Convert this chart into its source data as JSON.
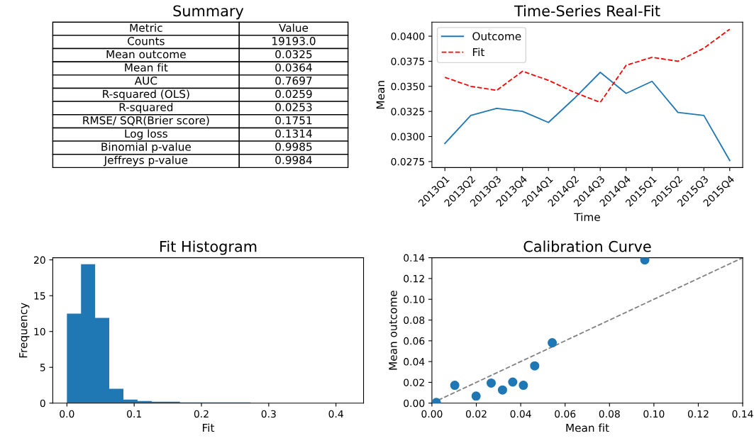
{
  "chart_data": [
    {
      "type": "other",
      "title": "Summary",
      "annotations": [
        "Metric",
        "Value"
      ],
      "categories": [
        "Counts",
        "Mean outcome",
        "Mean fit",
        "AUC",
        "R-squared (OLS)",
        "R-squared",
        "RMSE/ SQR(Brier score)",
        "Log loss",
        "Binomial p-value",
        "Jeffreys p-value"
      ],
      "values": [
        19193,
        0.0325,
        0.0364,
        0.7697,
        0.0259,
        0.0253,
        0.1751,
        0.1314,
        0.9985,
        0.9984
      ],
      "value_labels": [
        "19193.0",
        "0.0325",
        "0.0364",
        "0.7697",
        "0.0259",
        "0.0253",
        "0.1751",
        "0.1314",
        "0.9985",
        "0.9984"
      ]
    },
    {
      "type": "line",
      "title": "Time-Series Real-Fit",
      "xlabel": "Time",
      "ylabel": "Mean",
      "categories": [
        "2013Q1",
        "2013Q2",
        "2013Q3",
        "2013Q4",
        "2014Q1",
        "2014Q2",
        "2014Q3",
        "2014Q4",
        "2015Q1",
        "2015Q2",
        "2015Q3",
        "2015Q4"
      ],
      "series": [
        {
          "name": "Outcome",
          "color": "#1f77b4",
          "line_style": "solid",
          "values": [
            0.0293,
            0.0321,
            0.0328,
            0.0325,
            0.0314,
            0.0338,
            0.0364,
            0.0343,
            0.0355,
            0.0324,
            0.0321,
            0.0276
          ]
        },
        {
          "name": "Fit",
          "color": "#ff0000",
          "line_style": "dashed",
          "values": [
            0.0359,
            0.035,
            0.0346,
            0.0365,
            0.0356,
            0.0344,
            0.0334,
            0.0371,
            0.0379,
            0.0375,
            0.0388,
            0.0407
          ]
        }
      ],
      "ylim": [
        0.0269,
        0.0414
      ],
      "yticks": [
        {
          "value": 0.0275,
          "label": "0.0275"
        },
        {
          "value": 0.03,
          "label": "0.0300"
        },
        {
          "value": 0.0325,
          "label": "0.0325"
        },
        {
          "value": 0.035,
          "label": "0.0350"
        },
        {
          "value": 0.0375,
          "label": "0.0375"
        },
        {
          "value": 0.04,
          "label": "0.0400"
        }
      ],
      "legend": "top left",
      "grid": false
    },
    {
      "type": "histogram",
      "title": "Fit Histogram",
      "xlabel": "Fit",
      "ylabel": "Frequency",
      "bins": [
        0.0,
        0.021,
        0.042,
        0.063,
        0.084,
        0.105,
        0.126,
        0.147,
        0.168,
        0.189,
        0.21,
        0.231,
        0.252,
        0.273,
        0.294,
        0.315,
        0.336,
        0.357,
        0.378,
        0.399,
        0.42
      ],
      "values": [
        12.5,
        19.4,
        11.9,
        2.0,
        0.5,
        0.3,
        0.2,
        0.2,
        0.1,
        0.1,
        0.1,
        0.1,
        0.1,
        0,
        0,
        0,
        0,
        0,
        0,
        0
      ],
      "color": "#1f77b4",
      "xlim": [
        -0.021,
        0.441
      ],
      "xticks": [
        {
          "value": 0.0,
          "label": "0.0"
        },
        0.1,
        0.2,
        0.3,
        0.4
      ],
      "ylim": [
        0,
        20.3
      ],
      "yticks": [
        0,
        5,
        10,
        15,
        20
      ],
      "grid": false
    },
    {
      "type": "scatter",
      "title": "Calibration Curve",
      "xlabel": "Mean fit",
      "ylabel": "Mean outcome",
      "series": [
        {
          "type": "scatter",
          "color": "#1f77b4",
          "marker": "circle",
          "x": [
            0.002,
            0.0103,
            0.0199,
            0.0267,
            0.0318,
            0.0364,
            0.0412,
            0.0463,
            0.0542,
            0.0959
          ],
          "values": [
            0.0006,
            0.0172,
            0.0068,
            0.0193,
            0.0127,
            0.0203,
            0.0172,
            0.0359,
            0.0581,
            0.1379
          ]
        },
        {
          "type": "line",
          "color": "#808080",
          "line_style": "dashed",
          "x": [
            0,
            0.14
          ],
          "values": [
            0,
            0.14
          ]
        }
      ],
      "xlim": [
        0,
        0.14
      ],
      "ylim": [
        0,
        0.14
      ],
      "xticks": [
        {
          "value": 0,
          "label": "0.00"
        },
        {
          "value": 0.02,
          "label": "0.02"
        },
        {
          "value": 0.04,
          "label": "0.04"
        },
        {
          "value": 0.06,
          "label": "0.06"
        },
        {
          "value": 0.08,
          "label": "0.08"
        },
        {
          "value": 0.1,
          "label": "0.10"
        },
        {
          "value": 0.12,
          "label": "0.12"
        },
        {
          "value": 0.14,
          "label": "0.14"
        }
      ],
      "yticks": [
        {
          "value": 0,
          "label": "0.00"
        },
        {
          "value": 0.02,
          "label": "0.02"
        },
        {
          "value": 0.04,
          "label": "0.04"
        },
        {
          "value": 0.06,
          "label": "0.06"
        },
        {
          "value": 0.08,
          "label": "0.08"
        },
        {
          "value": 0.1,
          "label": "0.10"
        },
        {
          "value": 0.12,
          "label": "0.12"
        },
        {
          "value": 0.14,
          "label": "0.14"
        }
      ],
      "grid": false
    }
  ]
}
